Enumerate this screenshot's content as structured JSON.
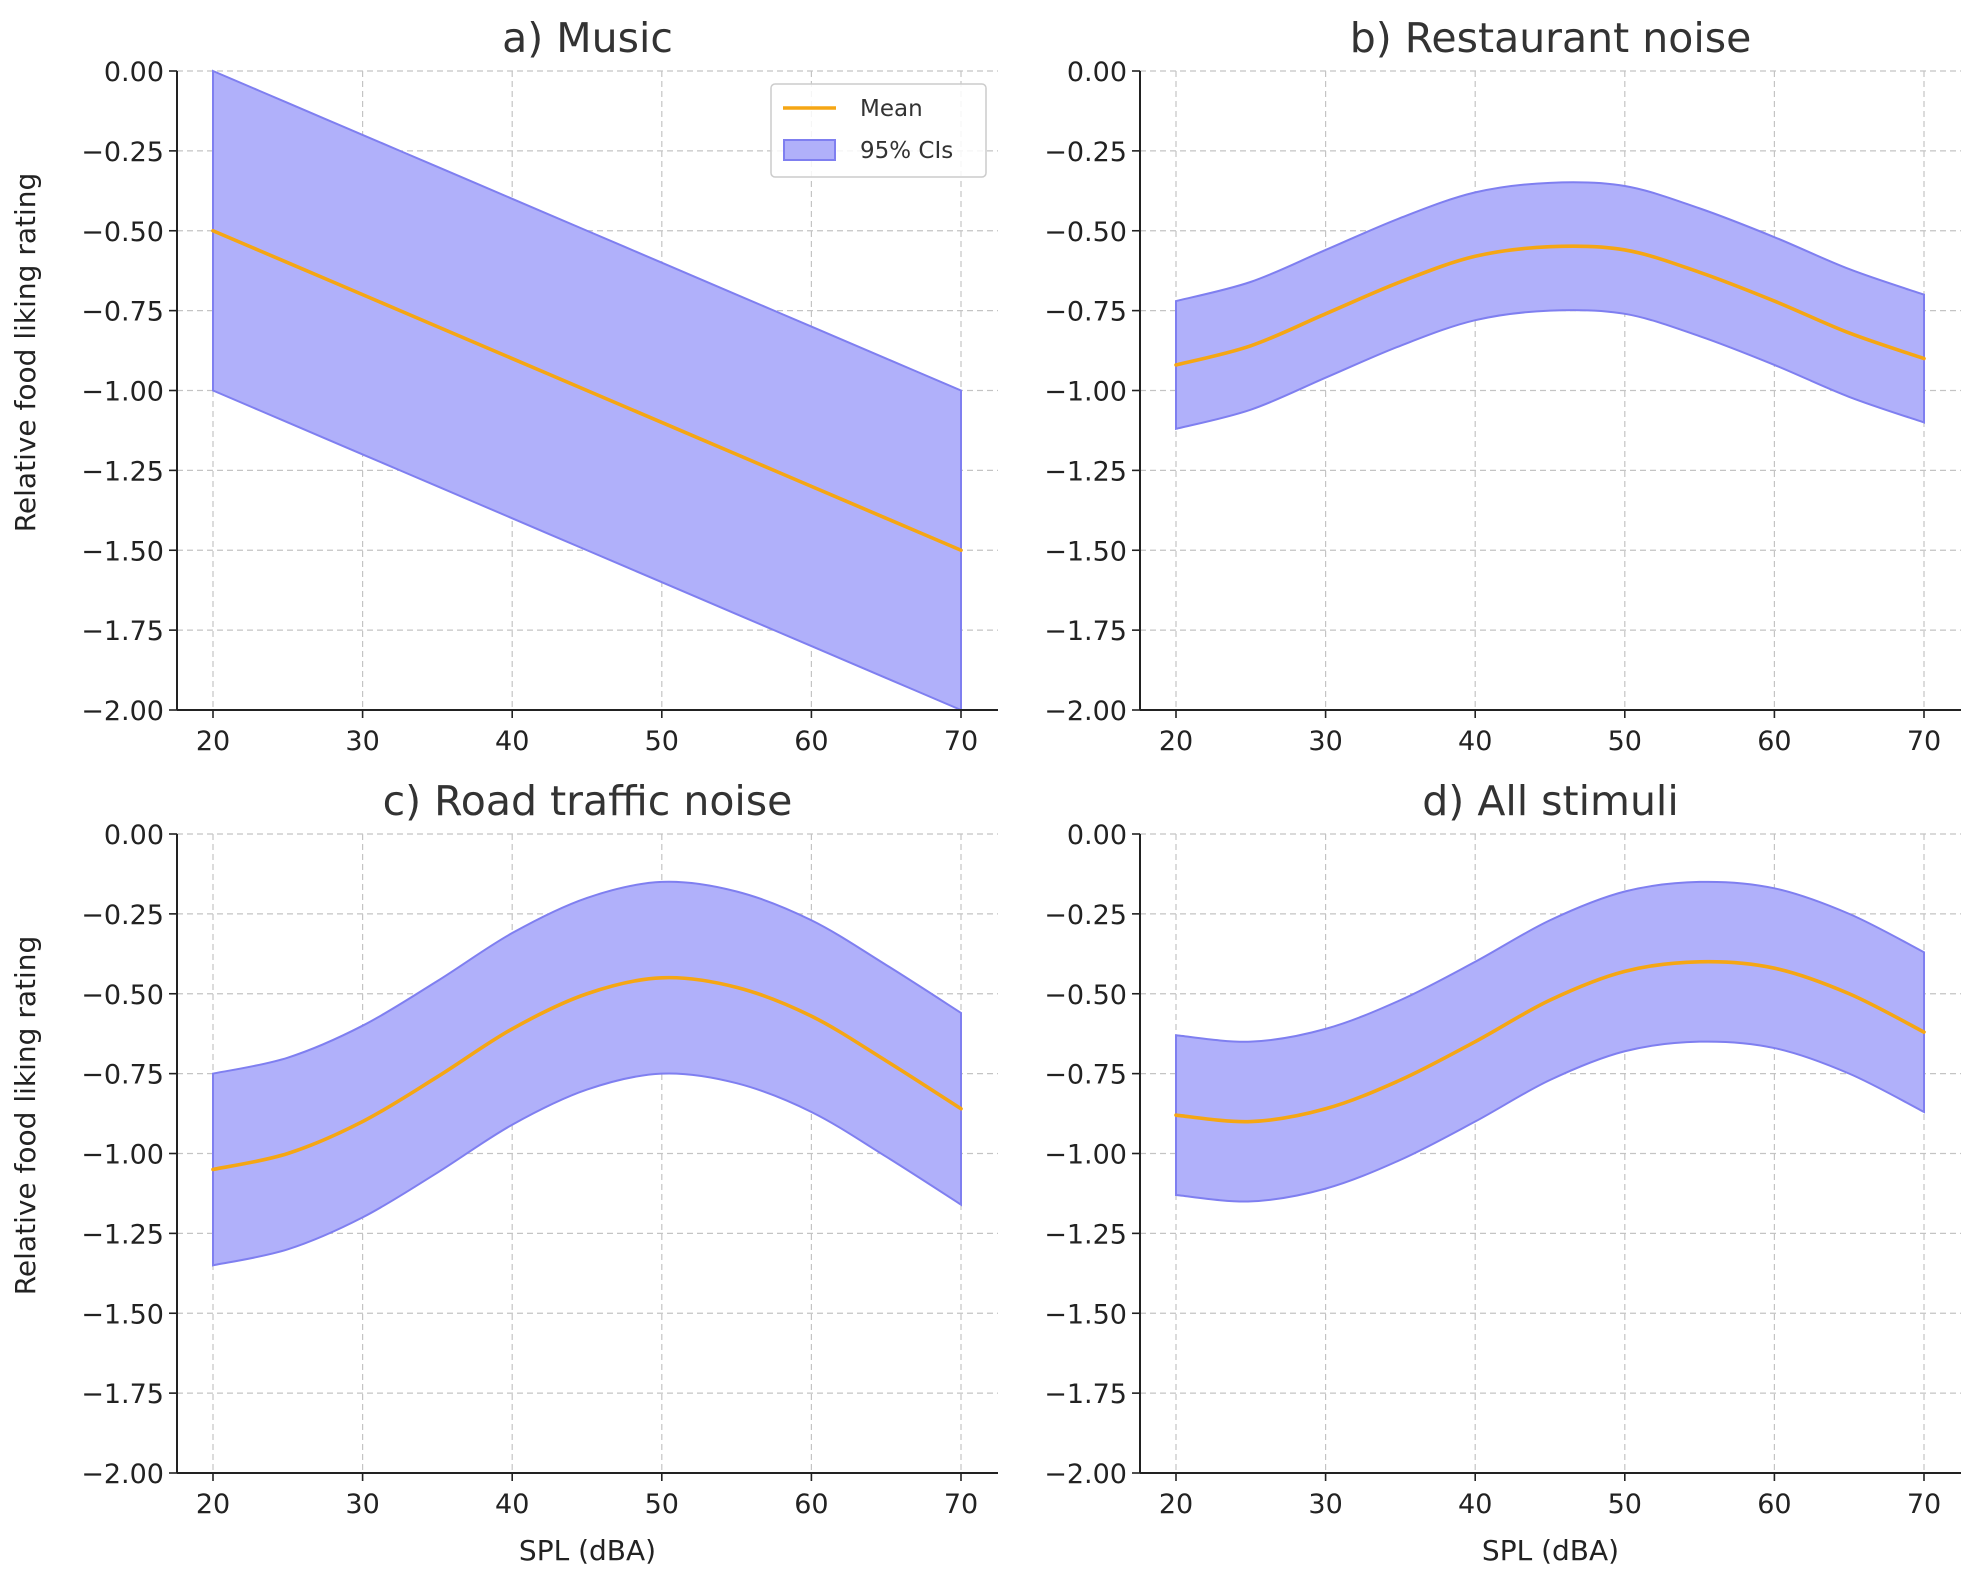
{
  "colors": {
    "mean_line": "#f5a614",
    "ci_fill": "#b0b0fa",
    "ci_edge": "#7f7ff0",
    "grid": "#c4c4c4",
    "axis": "#222222"
  },
  "legend": {
    "location": "upper-right of panel a",
    "mean_label": "Mean",
    "ci_label": "95% CIs"
  },
  "chart_data": [
    {
      "type": "line",
      "title": "a) Music",
      "xlabel": "",
      "ylabel": "Relative food liking rating",
      "xlim": [
        20,
        70
      ],
      "ylim": [
        -2.0,
        0.0
      ],
      "x_ticks": [
        "20",
        "30",
        "40",
        "50",
        "60",
        "70"
      ],
      "y_ticks": [
        "0.00",
        "−0.25",
        "−0.50",
        "−0.75",
        "−1.00",
        "−1.25",
        "−1.50",
        "−1.75",
        "−2.00"
      ],
      "grid": true,
      "show_legend": true,
      "x": [
        20,
        25,
        30,
        35,
        40,
        45,
        50,
        55,
        60,
        65,
        70
      ],
      "series": [
        {
          "name": "Mean",
          "values": [
            -0.5,
            -0.6,
            -0.7,
            -0.8,
            -0.9,
            -1.0,
            -1.1,
            -1.2,
            -1.3,
            -1.4,
            -1.5
          ]
        },
        {
          "name": "95% CIs",
          "lower": [
            -1.0,
            -1.1,
            -1.2,
            -1.3,
            -1.4,
            -1.5,
            -1.6,
            -1.7,
            -1.8,
            -1.9,
            -2.0
          ],
          "upper": [
            0.0,
            -0.1,
            -0.2,
            -0.3,
            -0.4,
            -0.5,
            -0.6,
            -0.7,
            -0.8,
            -0.9,
            -1.0
          ]
        }
      ]
    },
    {
      "type": "line",
      "title": "b) Restaurant noise",
      "xlabel": "",
      "ylabel": "",
      "xlim": [
        20,
        70
      ],
      "ylim": [
        -2.0,
        0.0
      ],
      "x_ticks": [
        "20",
        "30",
        "40",
        "50",
        "60",
        "70"
      ],
      "y_ticks": [
        "0.00",
        "−0.25",
        "−0.50",
        "−0.75",
        "−1.00",
        "−1.25",
        "−1.50",
        "−1.75",
        "−2.00"
      ],
      "grid": true,
      "show_legend": false,
      "x": [
        20,
        25,
        30,
        35,
        40,
        45,
        50,
        55,
        60,
        65,
        70
      ],
      "series": [
        {
          "name": "Mean",
          "values": [
            -0.92,
            -0.86,
            -0.76,
            -0.66,
            -0.58,
            -0.55,
            -0.56,
            -0.63,
            -0.72,
            -0.82,
            -0.9
          ]
        },
        {
          "name": "95% CIs",
          "lower": [
            -1.12,
            -1.06,
            -0.96,
            -0.86,
            -0.78,
            -0.75,
            -0.76,
            -0.83,
            -0.92,
            -1.02,
            -1.1
          ],
          "upper": [
            -0.72,
            -0.66,
            -0.56,
            -0.46,
            -0.38,
            -0.35,
            -0.36,
            -0.43,
            -0.52,
            -0.62,
            -0.7
          ]
        }
      ]
    },
    {
      "type": "line",
      "title": "c) Road traffic noise",
      "xlabel": "SPL (dBA)",
      "ylabel": "Relative food liking rating",
      "xlim": [
        20,
        70
      ],
      "ylim": [
        -2.0,
        0.0
      ],
      "x_ticks": [
        "20",
        "30",
        "40",
        "50",
        "60",
        "70"
      ],
      "y_ticks": [
        "0.00",
        "−0.25",
        "−0.50",
        "−0.75",
        "−1.00",
        "−1.25",
        "−1.50",
        "−1.75",
        "−2.00"
      ],
      "grid": true,
      "show_legend": false,
      "x": [
        20,
        25,
        30,
        35,
        40,
        45,
        50,
        55,
        60,
        65,
        70
      ],
      "series": [
        {
          "name": "Mean",
          "values": [
            -1.05,
            -1.0,
            -0.9,
            -0.76,
            -0.61,
            -0.5,
            -0.45,
            -0.48,
            -0.57,
            -0.71,
            -0.86
          ]
        },
        {
          "name": "95% CIs",
          "lower": [
            -1.35,
            -1.3,
            -1.2,
            -1.06,
            -0.91,
            -0.8,
            -0.75,
            -0.78,
            -0.87,
            -1.01,
            -1.16
          ],
          "upper": [
            -0.75,
            -0.7,
            -0.6,
            -0.46,
            -0.31,
            -0.2,
            -0.15,
            -0.18,
            -0.27,
            -0.41,
            -0.56
          ]
        }
      ]
    },
    {
      "type": "line",
      "title": "d) All stimuli",
      "xlabel": "SPL (dBA)",
      "ylabel": "",
      "xlim": [
        20,
        70
      ],
      "ylim": [
        -2.0,
        0.0
      ],
      "x_ticks": [
        "20",
        "30",
        "40",
        "50",
        "60",
        "70"
      ],
      "y_ticks": [
        "0.00",
        "−0.25",
        "−0.50",
        "−0.75",
        "−1.00",
        "−1.25",
        "−1.50",
        "−1.75",
        "−2.00"
      ],
      "grid": true,
      "show_legend": false,
      "x": [
        20,
        25,
        30,
        35,
        40,
        45,
        50,
        55,
        60,
        65,
        70
      ],
      "series": [
        {
          "name": "Mean",
          "values": [
            -0.88,
            -0.9,
            -0.86,
            -0.77,
            -0.65,
            -0.52,
            -0.43,
            -0.4,
            -0.42,
            -0.5,
            -0.62
          ]
        },
        {
          "name": "95% CIs",
          "lower": [
            -1.13,
            -1.15,
            -1.11,
            -1.02,
            -0.9,
            -0.77,
            -0.68,
            -0.65,
            -0.67,
            -0.75,
            -0.87
          ],
          "upper": [
            -0.63,
            -0.65,
            -0.61,
            -0.52,
            -0.4,
            -0.27,
            -0.18,
            -0.15,
            -0.17,
            -0.25,
            -0.37
          ]
        }
      ]
    }
  ]
}
